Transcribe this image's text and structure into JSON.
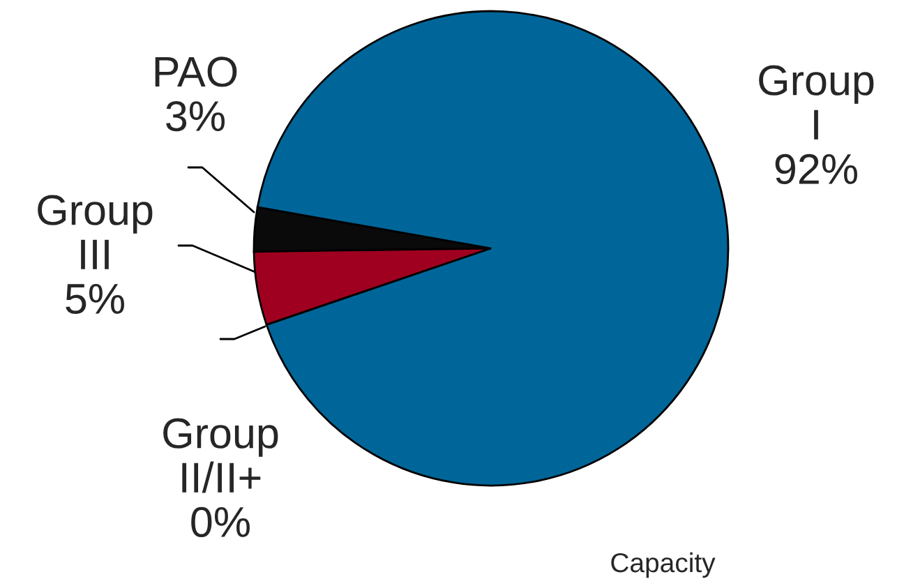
{
  "chart_data": {
    "type": "pie",
    "categories": [
      "PAO",
      "Group III",
      "Group II/II+",
      "Group I"
    ],
    "values": [
      3,
      5,
      0,
      92
    ],
    "value_labels": [
      "3%",
      "5%",
      "0%",
      "92%"
    ],
    "colors": [
      "#0a0a0a",
      "#a00020",
      "#ffffff",
      "#006699"
    ],
    "annotations": [
      "Capacity"
    ]
  }
}
